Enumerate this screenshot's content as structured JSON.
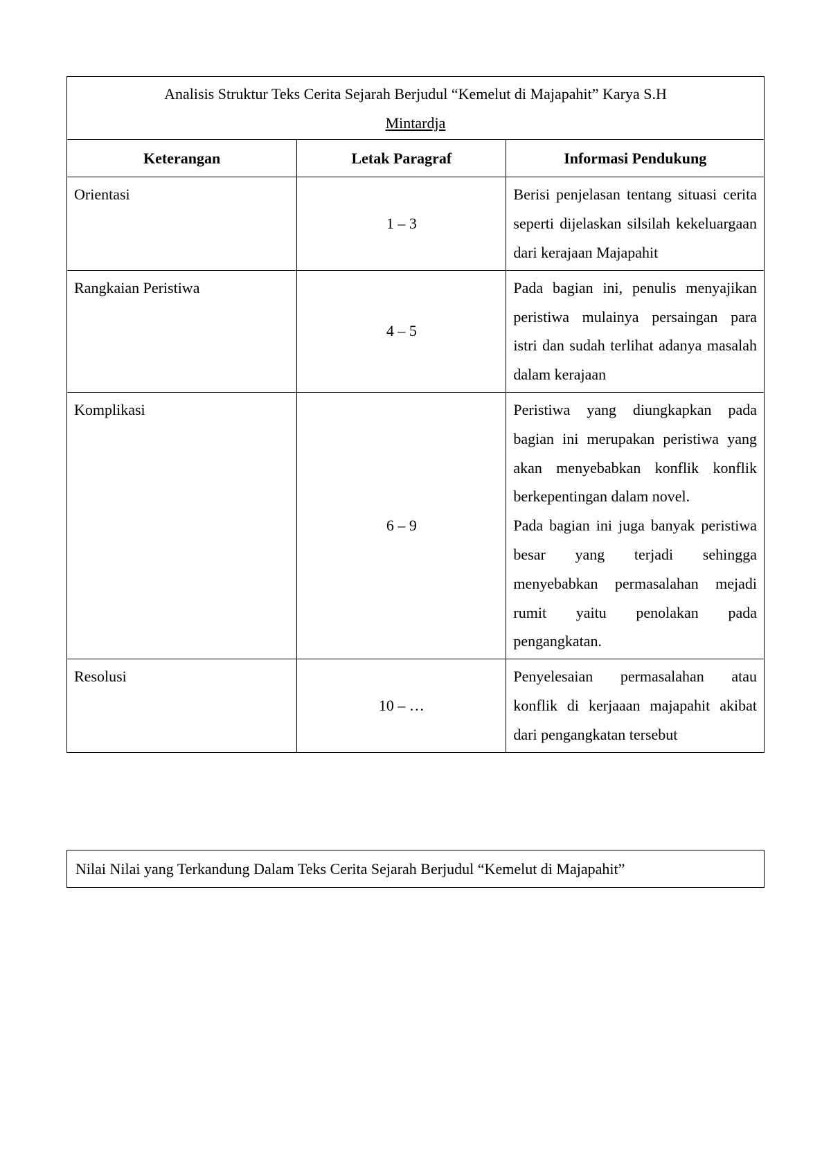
{
  "table1": {
    "title_line1": "Analisis Struktur Teks Cerita Sejarah Berjudul “Kemelut di Majapahit” Karya S.H",
    "title_line2": "Mintardja",
    "headers": {
      "col1": "Keterangan",
      "col2": "Letak Paragraf",
      "col3": "Informasi Pendukung"
    },
    "rows": [
      {
        "ket": "Orientasi",
        "letak": "1 – 3",
        "info": "Berisi penjelasan tentang situasi cerita seperti dijelaskan silsilah kekeluargaan dari kerajaan Majapahit"
      },
      {
        "ket": "Rangkaian Peristiwa",
        "letak": "4 – 5",
        "info": "Pada bagian ini, penulis menyajikan peristiwa mulainya persaingan para istri dan sudah terlihat adanya masalah dalam kerajaan"
      },
      {
        "ket": "Komplikasi",
        "letak": "6 – 9",
        "info_p1": "Peristiwa yang diungkapkan pada bagian ini merupakan peristiwa yang akan menyebabkan konflik konflik berkepentingan dalam novel.",
        "info_p2": "Pada bagian ini juga banyak peristiwa besar yang terjadi sehingga menyebabkan permasalahan mejadi rumit yaitu penolakan pada pengangkatan."
      },
      {
        "ket": "Resolusi",
        "letak": "10 – …",
        "info": "Penyelesaian permasalahan atau konflik di kerjaaan majapahit akibat dari pengangkatan tersebut"
      }
    ]
  },
  "table2": {
    "title": "Nilai Nilai yang Terkandung Dalam Teks Cerita Sejarah Berjudul “Kemelut di Majapahit”"
  }
}
